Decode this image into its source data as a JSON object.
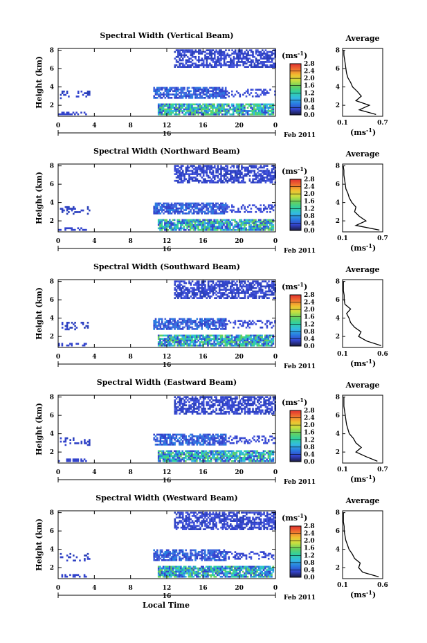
{
  "figure": {
    "date_label": "Feb 2011",
    "day_label": "16",
    "xlabel_bottom": "Local Time",
    "ylabel": "Height (km)",
    "unit_label": "(ms",
    "unit_exp": "-1",
    "avg_title": "Average",
    "colormap_stops": [
      "#1a1a40",
      "#3344cc",
      "#2a7de0",
      "#33bbe0",
      "#30d0a0",
      "#66d060",
      "#c8e040",
      "#f0c030",
      "#f07030",
      "#e03030"
    ]
  },
  "chart_data": [
    {
      "type": "heatmap",
      "title": "Spectral Width (Vertical Beam)",
      "x_ticks": [
        "0",
        "4",
        "8",
        "12",
        "16",
        "20",
        "0"
      ],
      "xlim": [
        0,
        24
      ],
      "y_ticks": [
        "2",
        "4",
        "6",
        "8"
      ],
      "ylim": [
        0.8,
        8.2
      ],
      "colorbar_ticks": [
        "0.0",
        "0.4",
        "0.8",
        "1.2",
        "1.6",
        "2.0",
        "2.4",
        "2.8"
      ],
      "colorbar_range": [
        0,
        2.8
      ],
      "avg_xticks": [
        "0.1",
        "0.7"
      ],
      "avg_xlim": [
        0.1,
        0.7
      ],
      "avg_profile": {
        "height": [
          1.0,
          1.5,
          2.0,
          2.5,
          3.0,
          3.5,
          4.0,
          4.5,
          5.0,
          5.5,
          6.0,
          6.5,
          7.0,
          7.5,
          8.0
        ],
        "width": [
          0.6,
          0.35,
          0.5,
          0.3,
          0.38,
          0.32,
          0.25,
          0.22,
          0.18,
          0.16,
          0.15,
          0.14,
          0.13,
          0.12,
          0.12
        ]
      }
    },
    {
      "type": "heatmap",
      "title": "Spectral Width (Northward Beam)",
      "x_ticks": [
        "0",
        "4",
        "8",
        "12",
        "16",
        "20",
        "0"
      ],
      "xlim": [
        0,
        24
      ],
      "y_ticks": [
        "2",
        "4",
        "6",
        "8"
      ],
      "ylim": [
        0.8,
        8.2
      ],
      "colorbar_ticks": [
        "0.0",
        "0.4",
        "0.8",
        "1.2",
        "1.6",
        "2.0",
        "2.4",
        "2.8"
      ],
      "colorbar_range": [
        0,
        2.8
      ],
      "avg_xticks": [
        "0.1",
        "0.7"
      ],
      "avg_xlim": [
        0.1,
        0.7
      ],
      "avg_profile": {
        "height": [
          1.0,
          1.5,
          2.0,
          2.5,
          3.0,
          3.5,
          4.0,
          4.5,
          5.0,
          5.5,
          6.0,
          6.5,
          7.0,
          7.5,
          8.0
        ],
        "width": [
          0.65,
          0.3,
          0.45,
          0.35,
          0.28,
          0.3,
          0.24,
          0.2,
          0.18,
          0.15,
          0.14,
          0.13,
          0.12,
          0.12,
          0.11
        ]
      }
    },
    {
      "type": "heatmap",
      "title": "Spectral Width (Southward Beam)",
      "x_ticks": [
        "0",
        "4",
        "8",
        "12",
        "16",
        "20",
        "0"
      ],
      "xlim": [
        0,
        24
      ],
      "y_ticks": [
        "2",
        "4",
        "6",
        "8"
      ],
      "ylim": [
        0.8,
        8.2
      ],
      "colorbar_ticks": [
        "0.0",
        "0.4",
        "0.8",
        "1.2",
        "1.6",
        "2.0",
        "2.4",
        "2.8"
      ],
      "colorbar_range": [
        0,
        2.8
      ],
      "avg_xticks": [
        "0.1",
        "0.6"
      ],
      "avg_xlim": [
        0.1,
        0.6
      ],
      "avg_profile": {
        "height": [
          1.0,
          1.5,
          2.0,
          2.5,
          3.0,
          3.5,
          4.0,
          4.5,
          5.0,
          5.5,
          6.0,
          6.5,
          7.0,
          7.5,
          8.0
        ],
        "width": [
          0.58,
          0.4,
          0.3,
          0.33,
          0.25,
          0.2,
          0.18,
          0.15,
          0.2,
          0.13,
          0.12,
          0.12,
          0.11,
          0.11,
          0.11
        ]
      }
    },
    {
      "type": "heatmap",
      "title": "Spectral Width (Eastward Beam)",
      "x_ticks": [
        "0",
        "4",
        "8",
        "12",
        "16",
        "20",
        "0"
      ],
      "xlim": [
        0,
        24
      ],
      "y_ticks": [
        "2",
        "4",
        "6",
        "8"
      ],
      "ylim": [
        0.8,
        8.2
      ],
      "colorbar_ticks": [
        "0.0",
        "0.4",
        "0.8",
        "1.2",
        "1.6",
        "2.0",
        "2.4",
        "2.8"
      ],
      "colorbar_range": [
        0,
        2.8
      ],
      "avg_xticks": [
        "0.1",
        "0.7"
      ],
      "avg_xlim": [
        0.1,
        0.7
      ],
      "avg_profile": {
        "height": [
          1.0,
          1.5,
          2.0,
          2.5,
          3.0,
          3.5,
          4.0,
          4.5,
          5.0,
          5.5,
          6.0,
          6.5,
          7.0,
          7.5,
          8.0
        ],
        "width": [
          0.62,
          0.45,
          0.3,
          0.38,
          0.3,
          0.26,
          0.2,
          0.18,
          0.16,
          0.15,
          0.14,
          0.13,
          0.12,
          0.12,
          0.12
        ]
      }
    },
    {
      "type": "heatmap",
      "title": "Spectral Width (Westward Beam)",
      "x_ticks": [
        "0",
        "4",
        "8",
        "12",
        "16",
        "20",
        "0"
      ],
      "xlim": [
        0,
        24
      ],
      "y_ticks": [
        "2",
        "4",
        "6",
        "8"
      ],
      "ylim": [
        0.8,
        8.2
      ],
      "colorbar_ticks": [
        "0.0",
        "0.4",
        "0.8",
        "1.2",
        "1.6",
        "2.0",
        "2.4",
        "2.8"
      ],
      "colorbar_range": [
        0,
        2.8
      ],
      "avg_xticks": [
        "0.1",
        "0.6"
      ],
      "avg_xlim": [
        0.1,
        0.6
      ],
      "avg_profile": {
        "height": [
          1.0,
          1.5,
          2.0,
          2.5,
          3.0,
          3.5,
          4.0,
          4.5,
          5.0,
          5.5,
          6.0,
          6.5,
          7.0,
          7.5,
          8.0
        ],
        "width": [
          0.55,
          0.35,
          0.3,
          0.32,
          0.25,
          0.22,
          0.18,
          0.16,
          0.14,
          0.13,
          0.12,
          0.12,
          0.11,
          0.11,
          0.11
        ]
      }
    }
  ]
}
